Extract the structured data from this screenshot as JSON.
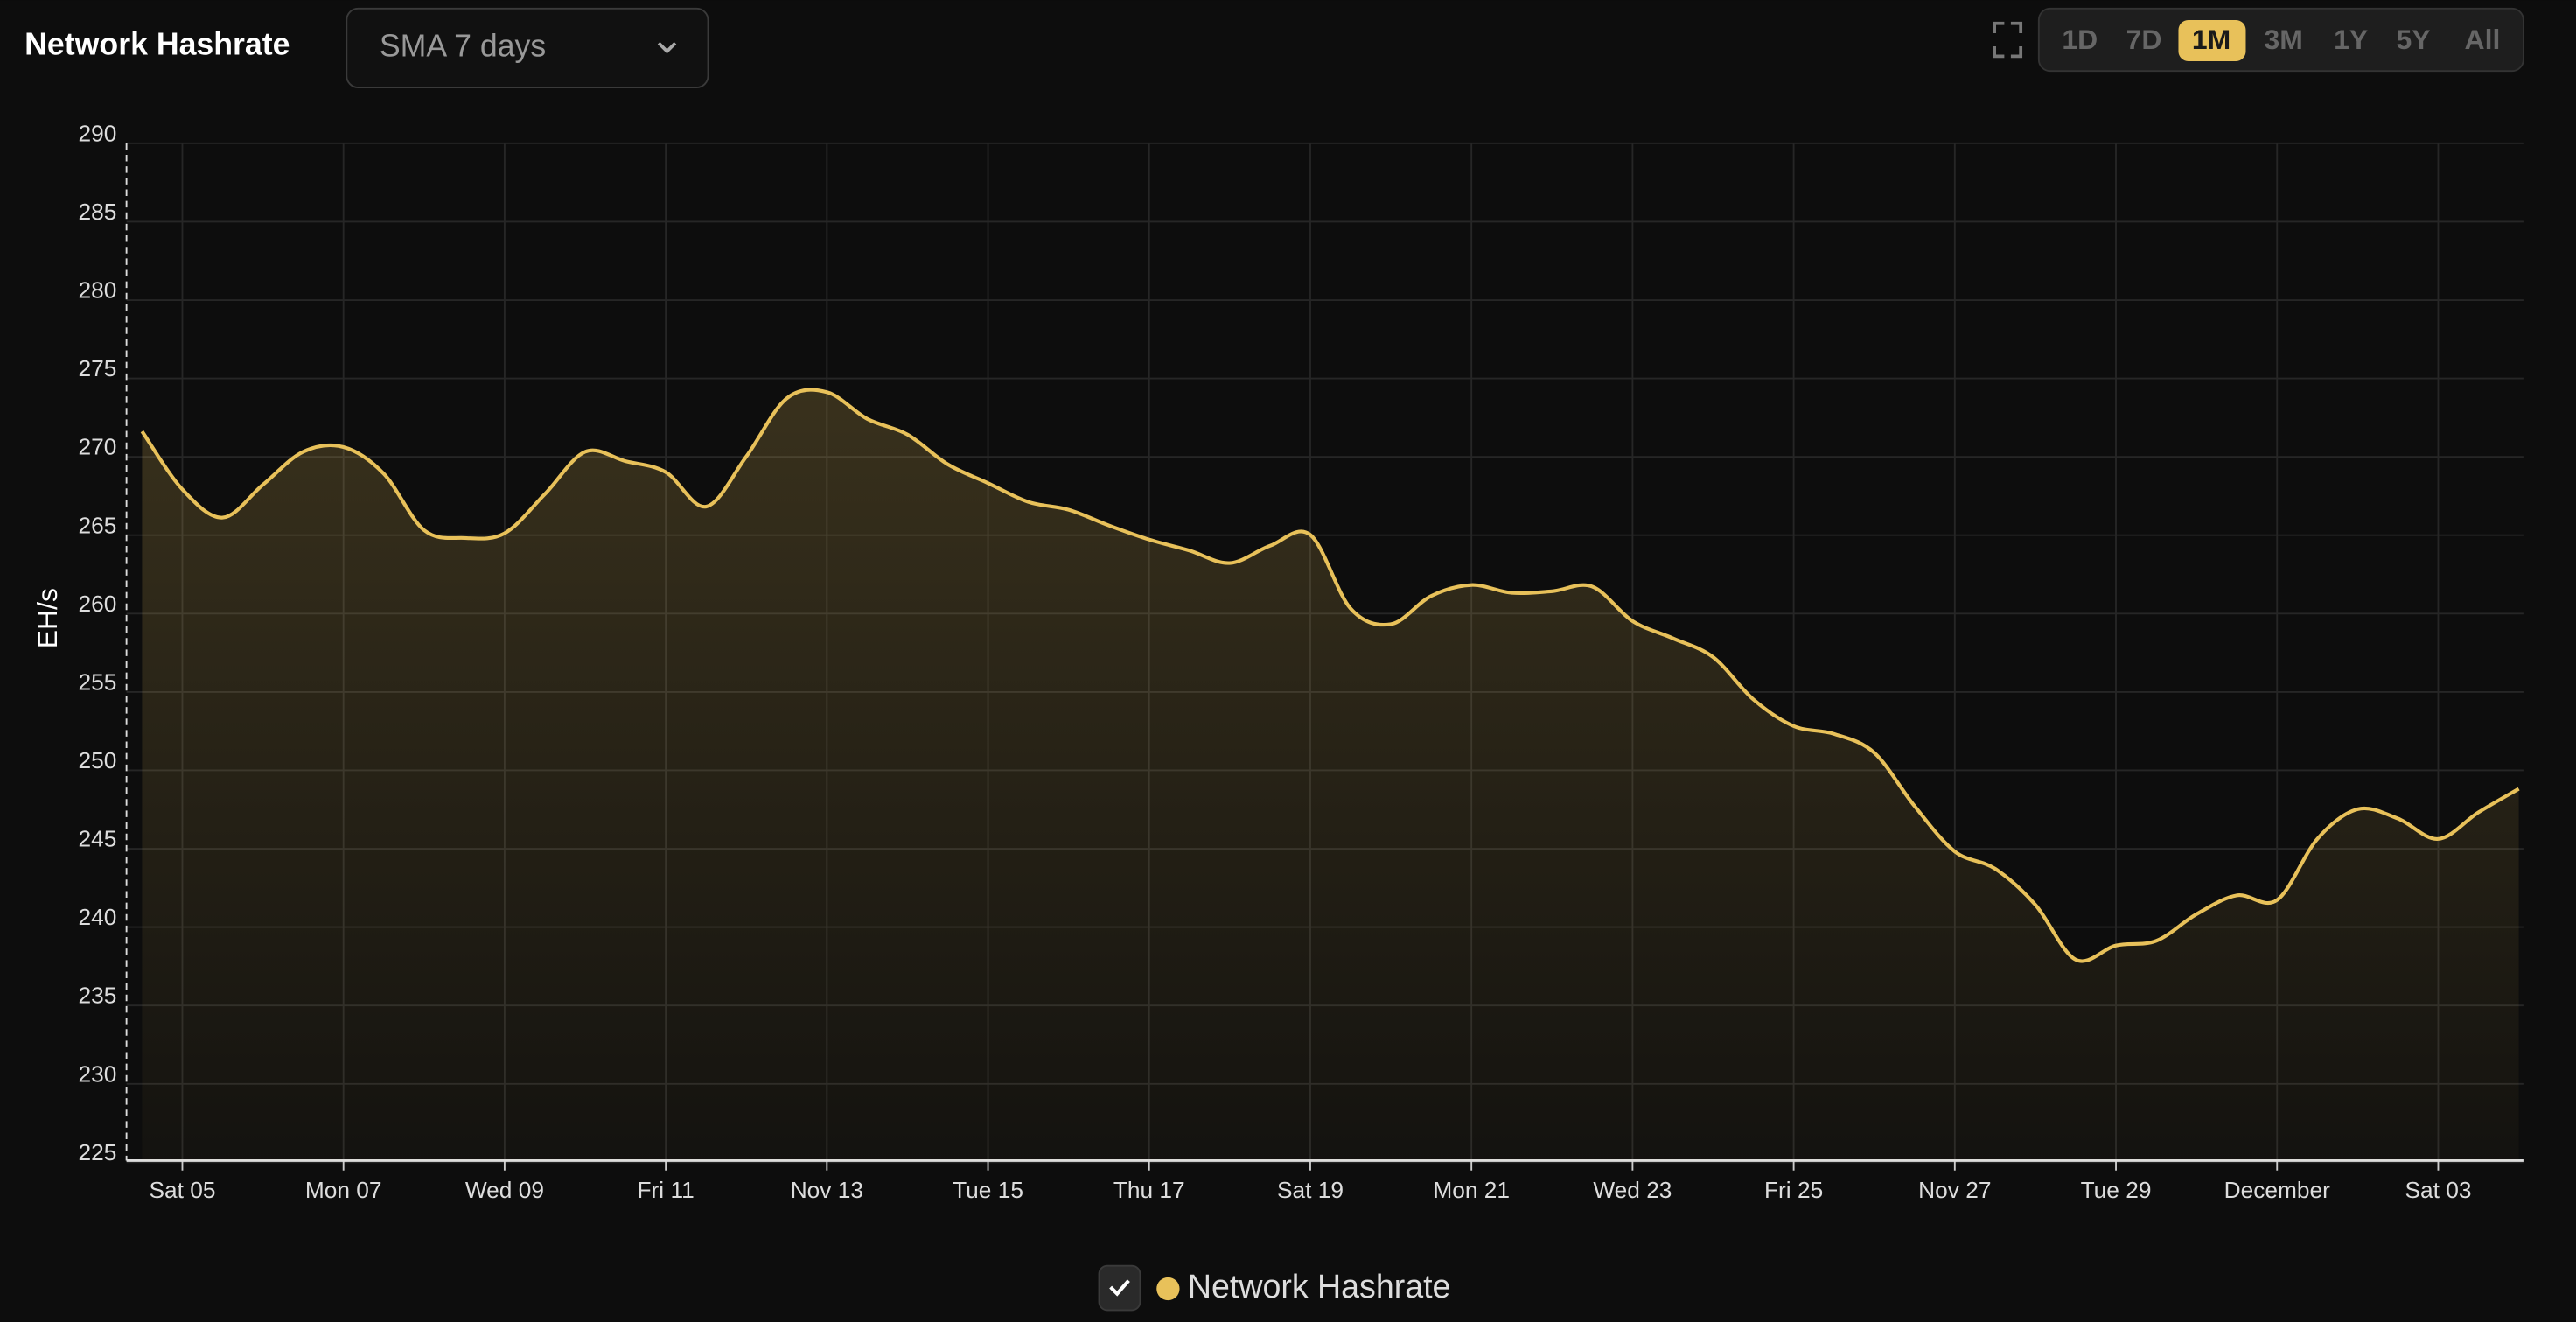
{
  "chart_data": {
    "type": "line",
    "title": "Network Hashrate",
    "y_label": "EH/s",
    "controls": {
      "smoothing": "SMA 7 days",
      "ranges": [
        "1D",
        "7D",
        "1M",
        "3M",
        "1Y",
        "5Y",
        "All"
      ],
      "active_range": "1M"
    },
    "categories": [
      null,
      "Sat 05",
      null,
      null,
      null,
      "Mon 07",
      null,
      null,
      null,
      "Wed 09",
      null,
      null,
      null,
      "Fri 11",
      null,
      null,
      null,
      "Nov 13",
      null,
      null,
      null,
      "Tue 15",
      null,
      null,
      null,
      "Thu 17",
      null,
      null,
      null,
      "Sat 19",
      null,
      null,
      null,
      "Mon 21",
      null,
      null,
      null,
      "Wed 23",
      null,
      null,
      null,
      "Fri 25",
      null,
      null,
      null,
      "Nov 27",
      null,
      null,
      null,
      "Tue 29",
      null,
      null,
      null,
      "December",
      null,
      null,
      null,
      "Sat 03",
      null,
      null
    ],
    "series": [
      {
        "name": "Network Hashrate",
        "color": "#e8c15a",
        "values": [
          271.1,
          267.4,
          265.6,
          267.7,
          269.8,
          270.1,
          268.4,
          264.8,
          264.3,
          264.6,
          267.1,
          269.8,
          269.2,
          268.5,
          266.3,
          269.5,
          273.2,
          273.6,
          271.9,
          270.9,
          269.0,
          267.8,
          266.6,
          266.1,
          265.1,
          264.2,
          263.5,
          262.7,
          263.8,
          264.5,
          259.8,
          258.8,
          260.6,
          261.3,
          260.8,
          260.9,
          261.2,
          259.0,
          257.9,
          256.7,
          254.0,
          252.3,
          251.8,
          250.6,
          247.2,
          244.3,
          243.2,
          240.9,
          237.4,
          238.3,
          238.6,
          240.3,
          241.5,
          241.2,
          245.1,
          247.0,
          246.4,
          245.1,
          246.8,
          248.3
        ]
      }
    ],
    "ylim": [
      225,
      290
    ],
    "yticks": [
      225,
      230,
      235,
      240,
      245,
      250,
      255,
      260,
      265,
      270,
      275,
      280,
      285,
      290
    ],
    "grid": true
  }
}
